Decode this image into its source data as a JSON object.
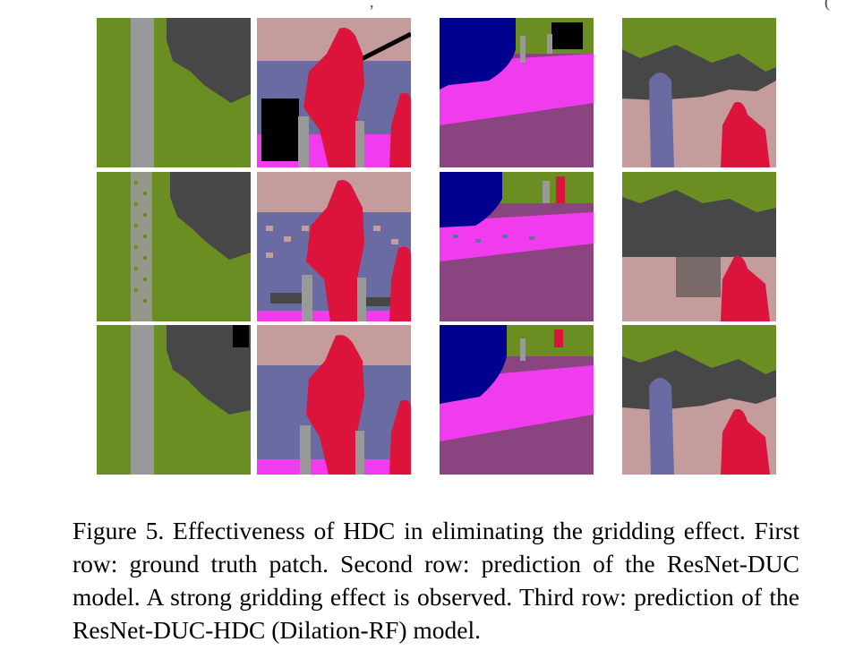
{
  "figure": {
    "caption": "Figure 5. Effectiveness of HDC in eliminating the gridding effect. First row: ground truth patch. Second row: prediction of the ResNet-DUC model. A strong gridding effect is observed. Third row: prediction of the ResNet-DUC-HDC (Dilation-RF) model.",
    "top_marks": [
      ",",
      "("
    ]
  }
}
